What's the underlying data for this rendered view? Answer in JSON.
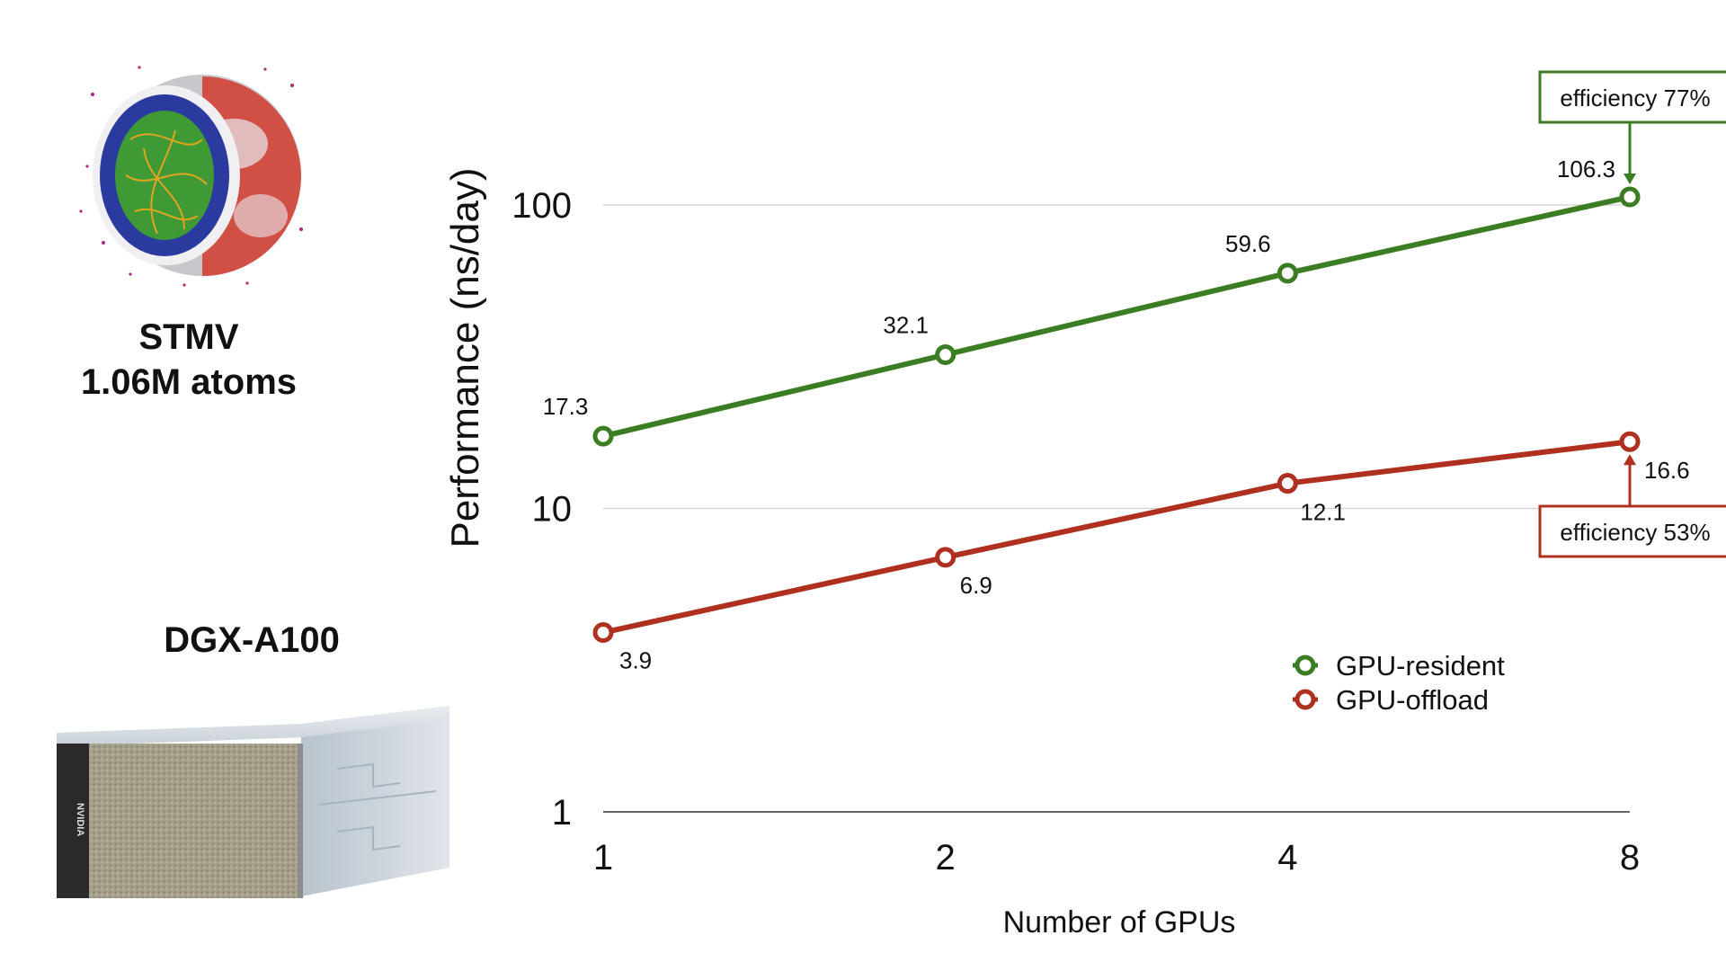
{
  "left_panel": {
    "molecule_name": "STMV",
    "molecule_atoms": "1.06M atoms",
    "machine_name": "DGX-A100",
    "machine_logo_text": "NVIDIA"
  },
  "colors": {
    "resident": "#3a7d22",
    "offload": "#b0301f",
    "grid": "#cfcfcf",
    "axis": "#333333"
  },
  "chart_data": {
    "type": "line",
    "xlabel": "Number of GPUs",
    "ylabel": "Performance (ns/day)",
    "x_scale": "log2",
    "y_scale": "log10",
    "x": [
      1,
      2,
      4,
      8
    ],
    "x_tick_labels": [
      "1",
      "2",
      "4",
      "8"
    ],
    "ylim": [
      1,
      100
    ],
    "y_ticks": [
      1,
      10,
      100
    ],
    "y_tick_labels": [
      "1",
      "10",
      "100"
    ],
    "grid": "horizontal",
    "legend_position": "lower-right",
    "series": [
      {
        "name": "GPU-resident",
        "color": "#3a7d22",
        "values": [
          17.3,
          32.1,
          59.6,
          106.3
        ],
        "labels": [
          "17.3",
          "32.1",
          "59.6",
          "106.3"
        ]
      },
      {
        "name": "GPU-offload",
        "color": "#b0301f",
        "values": [
          3.9,
          6.9,
          12.1,
          16.6
        ],
        "labels": [
          "3.9",
          "6.9",
          "12.1",
          "16.6"
        ]
      }
    ],
    "annotations": [
      {
        "text": "efficiency 77%",
        "series": "GPU-resident",
        "x": 8
      },
      {
        "text": "efficiency 53%",
        "series": "GPU-offload",
        "x": 8
      }
    ]
  }
}
